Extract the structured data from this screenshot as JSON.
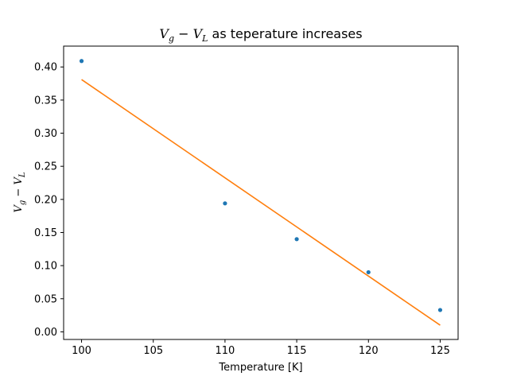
{
  "chart_data": {
    "type": "scatter",
    "title": {
      "v1": "V",
      "s1": "g",
      "op": " − ",
      "v2": "V",
      "s2": "L",
      "rest": " as teperature increases"
    },
    "xlabel": "Temperature [K]",
    "ylabel": {
      "v1": "V",
      "s1": "g",
      "op": " − ",
      "v2": "V",
      "s2": "L"
    },
    "xlim": [
      98.75,
      126.25
    ],
    "ylim": [
      -0.0115,
      0.4315
    ],
    "xticks": [
      100,
      105,
      110,
      115,
      120,
      125
    ],
    "yticks": [
      "0.00",
      "0.05",
      "0.10",
      "0.15",
      "0.20",
      "0.25",
      "0.30",
      "0.35",
      "0.40"
    ],
    "grid": false,
    "series": [
      {
        "type": "scatter",
        "color": "#1f77b4",
        "x": [
          100,
          110,
          115,
          120,
          125
        ],
        "y": [
          0.409,
          0.194,
          0.14,
          0.09,
          0.033
        ]
      },
      {
        "type": "line",
        "color": "#ff7f0e",
        "x": [
          100,
          125
        ],
        "y": [
          0.381,
          0.01
        ]
      }
    ]
  }
}
